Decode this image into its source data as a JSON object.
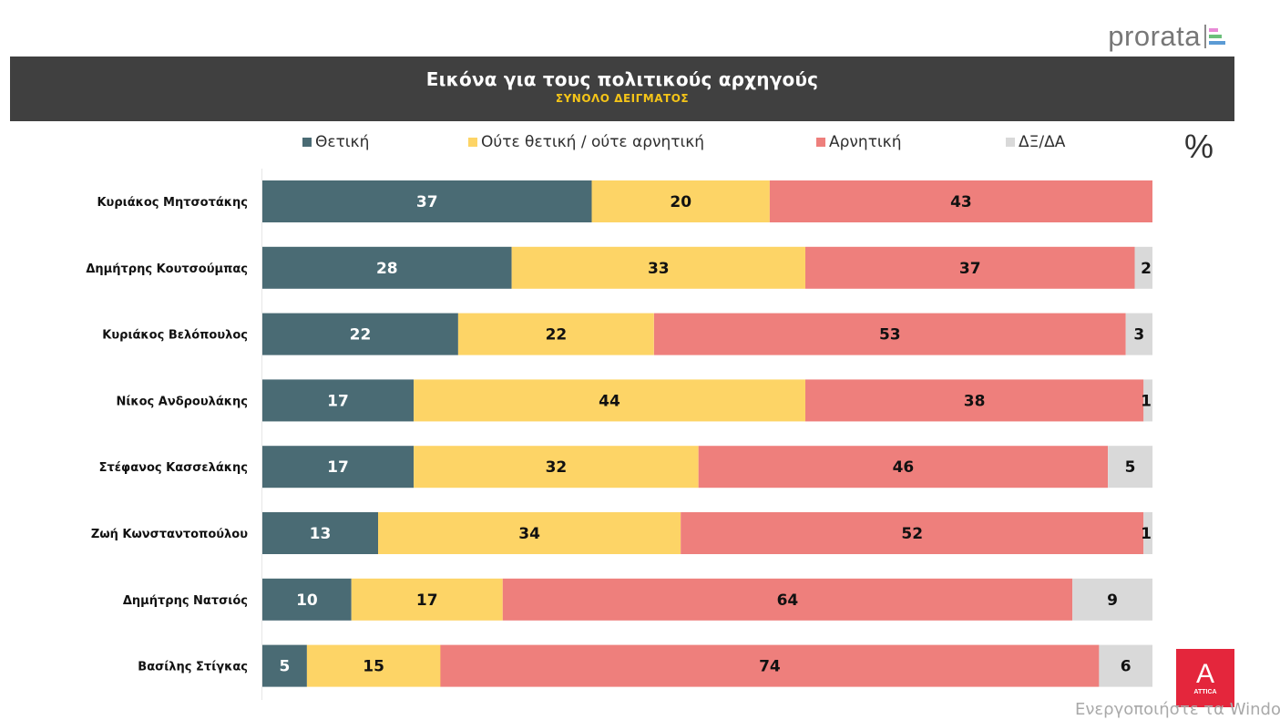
{
  "brand": {
    "name": "prorata",
    "mark_colors": [
      "#e88ad6",
      "#6bbf7a",
      "#5b9bd5"
    ]
  },
  "attica_logo": {
    "glyph": "A",
    "text": "ATTICA",
    "color": "#e4263c"
  },
  "watermark": "Ενεργοποιήστε τα Windo",
  "unit_symbol": "%",
  "chart_data": {
    "type": "bar",
    "orientation": "horizontal",
    "stacked": true,
    "title": "Εικόνα για τους πολιτικούς αρχηγούς",
    "subtitle": "ΣΥΝΟΛΟ ΔΕΙΓΜΑΤΟΣ",
    "xlabel": "",
    "ylabel": "",
    "unit": "%",
    "xlim": [
      0,
      100
    ],
    "grid": false,
    "legend_position": "top",
    "categories": [
      "Κυριάκος Μητσοτάκης",
      "Δημήτρης Κουτσούμπας",
      "Κυριάκος Βελόπουλος",
      "Νίκος Ανδρουλάκης",
      "Στέφανος Κασσελάκης",
      "Ζωή Κωνσταντοπούλου",
      "Δημήτρης Νατσιός",
      "Βασίλης Στίγκας"
    ],
    "series": [
      {
        "name": "Θετική",
        "color": "#4a6b74",
        "label_color": "#ffffff",
        "values": [
          37,
          28,
          22,
          17,
          17,
          13,
          10,
          5
        ]
      },
      {
        "name": "Ούτε θετική / ούτε αρνητική",
        "color": "#fdd466",
        "label_color": "#111111",
        "values": [
          20,
          33,
          22,
          44,
          32,
          34,
          17,
          15
        ]
      },
      {
        "name": "Αρνητική",
        "color": "#ee7f7c",
        "label_color": "#111111",
        "values": [
          43,
          37,
          53,
          38,
          46,
          52,
          64,
          74
        ]
      },
      {
        "name": "ΔΞ/ΔΑ",
        "color": "#d9d9d9",
        "label_color": "#111111",
        "values": [
          0,
          2,
          3,
          1,
          5,
          1,
          9,
          6
        ]
      }
    ]
  }
}
